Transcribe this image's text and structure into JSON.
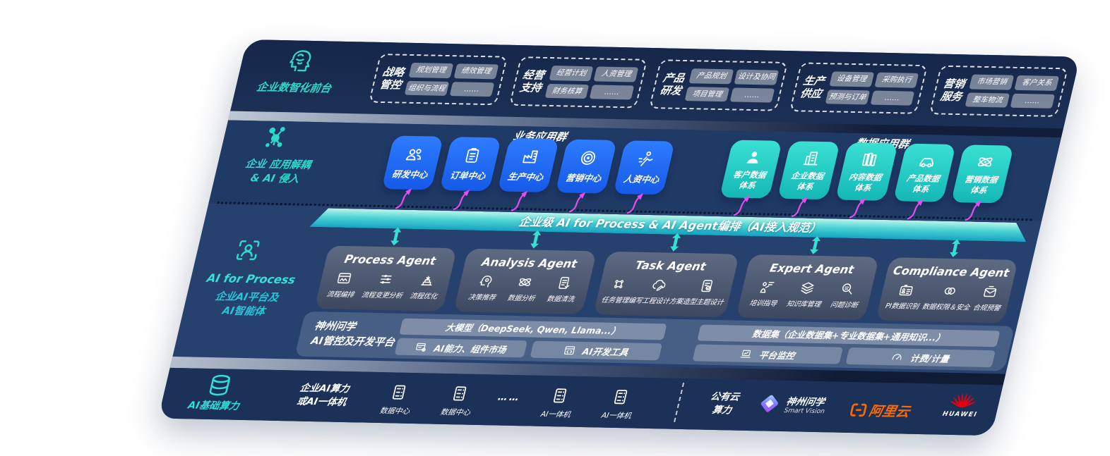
{
  "colors": {
    "panel_navy": "#1f3660",
    "accent_teal": "#2fd9c9",
    "accent_blue": "#2e7cff",
    "box_teal": "#2bd3c7",
    "arrow_magenta": "#e44df0",
    "bar_teal": "#2cc6cd",
    "aliyun_orange": "#ff6a00",
    "huawei_red": "#e60012"
  },
  "layer1": {
    "label": "企业数智化前台",
    "groups": [
      {
        "line1": "战略",
        "line2": "管控",
        "items": [
          "规划管理",
          "绩效管理",
          "组织与流程",
          "……"
        ]
      },
      {
        "line1": "经营",
        "line2": "支持",
        "items": [
          "经营计划",
          "人资管理",
          "财务核算",
          "……"
        ]
      },
      {
        "line1": "产品",
        "line2": "研发",
        "items": [
          "产品规划",
          "设计及协同",
          "项目管理",
          "……"
        ]
      },
      {
        "line1": "生产",
        "line2": "供应",
        "items": [
          "设备管理",
          "采购执行",
          "预测与订单",
          "……"
        ]
      },
      {
        "line1": "营销",
        "line2": "服务",
        "items": [
          "市场营销",
          "客户关系",
          "整车物流",
          "……"
        ]
      }
    ]
  },
  "layer2": {
    "label1": "企业 应用解耦",
    "label2": "& AI 侵入",
    "biz_title": "业务应用群",
    "data_title": "数据应用群",
    "biz_boxes": [
      {
        "label": "研发中心",
        "icon": "users"
      },
      {
        "label": "订单中心",
        "icon": "clipboard"
      },
      {
        "label": "生产中心",
        "icon": "factory"
      },
      {
        "label": "营销中心",
        "icon": "target"
      },
      {
        "label": "人资中心",
        "icon": "person-run"
      }
    ],
    "data_boxes": [
      {
        "line1": "客户数据",
        "line2": "体系",
        "icon": "user"
      },
      {
        "line1": "企业数据",
        "line2": "体系",
        "icon": "building"
      },
      {
        "line1": "内容数据",
        "line2": "体系",
        "icon": "books"
      },
      {
        "line1": "产品数据",
        "line2": "体系",
        "icon": "car"
      },
      {
        "line1": "营销数据",
        "line2": "体系",
        "icon": "atom"
      }
    ]
  },
  "ai_bar": {
    "text": "企业级 AI for Process & AI Agent编排（AI接入规范）"
  },
  "layer3": {
    "label_en": "AI for Process",
    "label_cn1": "企业AI平台及",
    "label_cn2": "AI智能体",
    "agents": [
      {
        "title": "Process Agent",
        "items": [
          {
            "label": "流程编排",
            "icon": "flow-window"
          },
          {
            "label": "流程变更分析",
            "icon": "sliders"
          },
          {
            "label": "流程优化",
            "icon": "stack-opt"
          }
        ]
      },
      {
        "title": "Analysis Agent",
        "items": [
          {
            "label": "决策推荐",
            "icon": "head-gear"
          },
          {
            "label": "数据分析",
            "icon": "atom"
          },
          {
            "label": "数据清洗",
            "icon": "doc"
          }
        ]
      },
      {
        "title": "Task Agent",
        "items": [
          {
            "label": "任务管理",
            "icon": "grid-dots"
          },
          {
            "label": "编写工程设计方案",
            "icon": "cloud-pen"
          },
          {
            "label": "造型主题设计",
            "icon": "tablet-check"
          }
        ]
      },
      {
        "title": "Expert Agent",
        "items": [
          {
            "label": "培训指导",
            "icon": "person-board"
          },
          {
            "label": "知识库管理",
            "icon": "layers"
          },
          {
            "label": "问题诊断",
            "icon": "search-bot"
          }
        ]
      },
      {
        "title": "Compliance Agent",
        "items": [
          {
            "label": "PI数据识别",
            "icon": "id-card"
          },
          {
            "label": "数据权限＆安全",
            "icon": "link-circles"
          },
          {
            "label": "合规预警",
            "icon": "mail-alert"
          }
        ]
      }
    ],
    "platform": {
      "label1": "神州问学",
      "label2": "AI管控及开发平台",
      "model_banner": "大模型（DeepSeek, Qwen, Llama...）",
      "dataset_banner": "数据集（企业数据集+专业数据集+通用知识...）",
      "left_tools": [
        {
          "label": "AI能力、组件市场",
          "icon": "window-gear"
        },
        {
          "label": "AI开发工具",
          "icon": "window-code"
        }
      ],
      "right_tools": [
        {
          "label": "平台监控",
          "icon": "laptop-chart"
        },
        {
          "label": "计费/计量",
          "icon": "gauge"
        }
      ]
    }
  },
  "layer4": {
    "label": "AI基础算力",
    "compute1": "企业AI算力",
    "compute2": "或AI一体机",
    "nodes": [
      {
        "label": "数据中心",
        "icon": "server"
      },
      {
        "label": "数据中心",
        "icon": "server"
      },
      {
        "label": "……",
        "type": "dots"
      },
      {
        "label": "AI一体机",
        "icon": "server"
      },
      {
        "label": "AI一体机",
        "icon": "server"
      }
    ],
    "cloud1": "公有云",
    "cloud2": "算力",
    "logos": {
      "smart_cn": "神州问学",
      "smart_en": "Smart Vision",
      "aliyun": "阿里云",
      "huawei": "HUAWEI"
    }
  }
}
